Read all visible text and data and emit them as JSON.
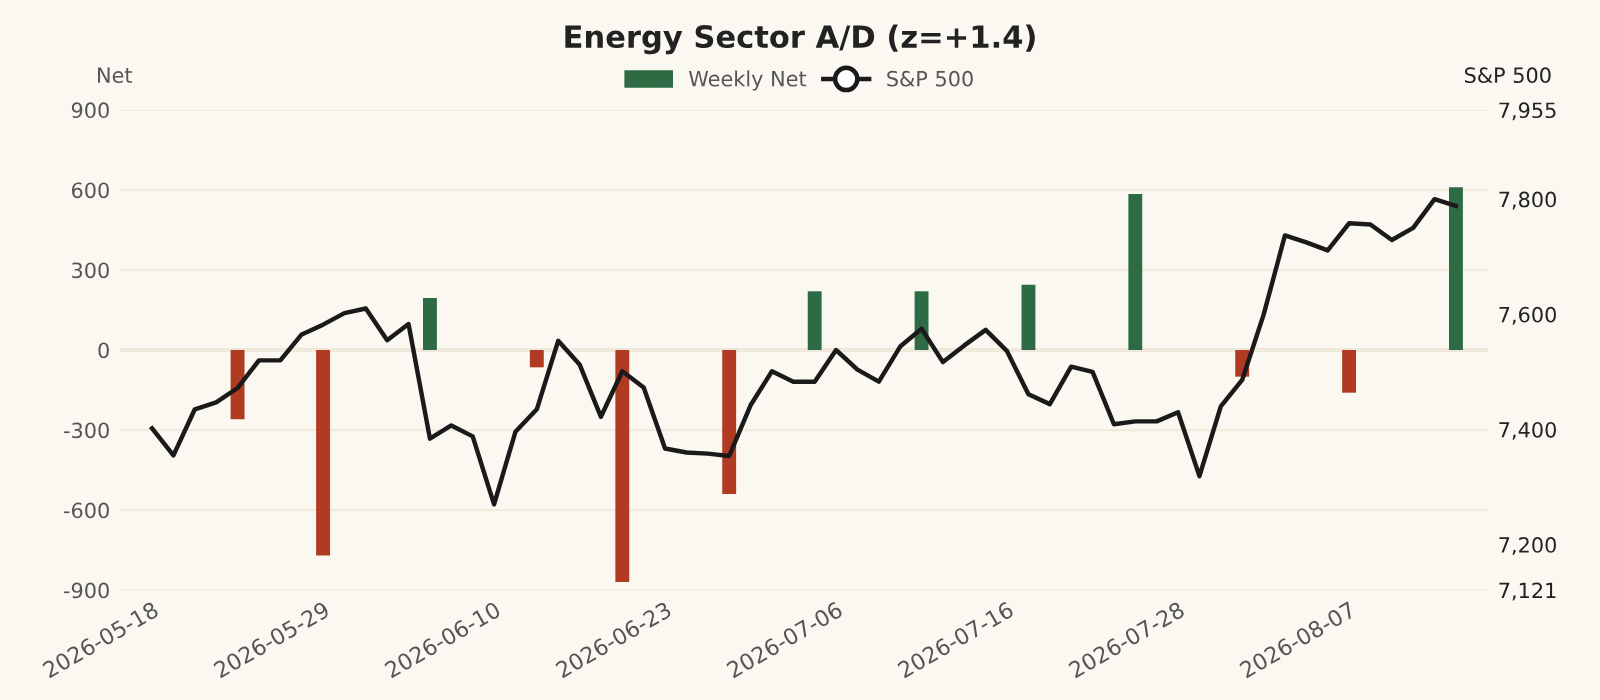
{
  "chart_data": {
    "type": "bar",
    "title": "Energy Sector A/D (z=+1.4)",
    "ylabel": "Net",
    "y2label": "S&P 500",
    "categories": [
      "2026-05-18",
      null,
      null,
      null,
      null,
      null,
      null,
      null,
      "2026-05-29",
      null,
      null,
      null,
      null,
      null,
      null,
      null,
      "2026-06-10",
      null,
      null,
      null,
      null,
      null,
      null,
      null,
      "2026-06-23",
      null,
      null,
      null,
      null,
      null,
      null,
      null,
      "2026-07-06",
      null,
      null,
      null,
      null,
      null,
      null,
      null,
      "2026-07-16",
      null,
      null,
      null,
      null,
      null,
      null,
      null,
      "2026-07-28",
      null,
      null,
      null,
      null,
      null,
      null,
      null,
      "2026-08-07",
      null,
      null,
      null,
      null,
      null
    ],
    "series": [
      {
        "name": "Weekly Net",
        "color": "#2e6b45",
        "values": [
          null,
          null,
          null,
          null,
          -260,
          null,
          null,
          null,
          -770,
          null,
          null,
          null,
          null,
          195,
          null,
          null,
          null,
          null,
          -65,
          null,
          null,
          null,
          -870,
          null,
          null,
          null,
          null,
          -540,
          null,
          null,
          null,
          220,
          null,
          null,
          null,
          null,
          220,
          null,
          null,
          null,
          null,
          245,
          null,
          null,
          null,
          null,
          585,
          null,
          null,
          null,
          null,
          -100,
          null,
          null,
          null,
          null,
          -160,
          null,
          null,
          null,
          null,
          610
        ],
        "colors": [
          null,
          null,
          null,
          null,
          "#b03a22",
          null,
          null,
          null,
          "#b03a22",
          null,
          null,
          null,
          null,
          "#2e6b45",
          null,
          null,
          null,
          null,
          "#b03a22",
          null,
          null,
          null,
          "#b03a22",
          null,
          null,
          null,
          null,
          "#b03a22",
          null,
          null,
          null,
          "#2e6b45",
          null,
          null,
          null,
          null,
          "#2e6b45",
          null,
          null,
          null,
          null,
          "#2e6b45",
          null,
          null,
          null,
          null,
          "#2e6b45",
          null,
          null,
          null,
          null,
          "#b03a22",
          null,
          null,
          null,
          null,
          "#b03a22",
          null,
          null,
          null,
          null,
          "#2e6b45"
        ]
      },
      {
        "name": "S&P 500",
        "type": "line",
        "axis": "y2",
        "color": "#1a1a1a",
        "values": [
          7402,
          7355,
          7435,
          7447,
          7472,
          7520,
          7520,
          7565,
          7582,
          7602,
          7610,
          7555,
          7583,
          7384,
          7407,
          7388,
          7270,
          7396,
          7435,
          7554,
          7513,
          7422,
          7501,
          7473,
          7367,
          7360,
          7358,
          7354,
          7442,
          7501,
          7483,
          7483,
          7538,
          7504,
          7483,
          7544,
          7575,
          7517,
          7546,
          7573,
          7536,
          7461,
          7444,
          7509,
          7500,
          7409,
          7414,
          7414,
          7430,
          7319,
          7440,
          7486,
          7599,
          7737,
          7725,
          7711,
          7758,
          7756,
          7729,
          7750,
          7800,
          7788
        ]
      }
    ],
    "ylim": [
      -900,
      900
    ],
    "yticks": [
      -900,
      -600,
      -300,
      0,
      300,
      600,
      900
    ],
    "y2lim": [
      7121,
      7955
    ],
    "y2ticks": [
      {
        "value": 7121,
        "label": "7,121"
      },
      {
        "value": 7200,
        "label": "7,200"
      },
      {
        "value": 7400,
        "label": "7,400"
      },
      {
        "value": 7600,
        "label": "7,600"
      },
      {
        "value": 7800,
        "label": "7,800"
      },
      {
        "value": 7955,
        "label": "7,955"
      }
    ],
    "ref_lines": [
      {
        "axis": "y",
        "value": 0,
        "color": "#ddd6c4"
      }
    ],
    "grid": "y",
    "legend": "top"
  }
}
